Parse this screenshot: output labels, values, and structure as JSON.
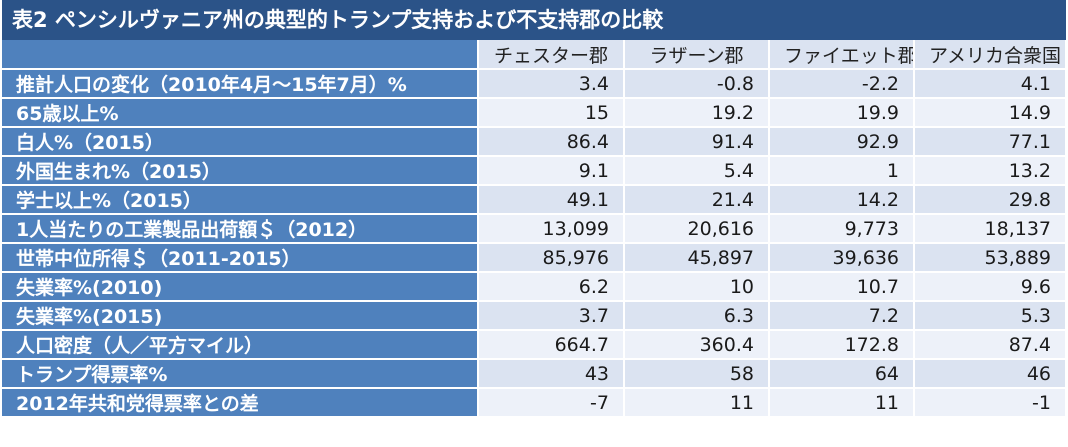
{
  "title": "表2  ペンシルヴァニア州の典型的トランプ支持および不支持郡の比較",
  "colors": {
    "title_bg": "#2b5388",
    "row_header_bg": "#4f81bd",
    "cell_dark": "#dbe3f1",
    "cell_light": "#edf1f9"
  },
  "chart_data": {
    "type": "table",
    "title": "表2  ペンシルヴァニア州の典型的トランプ支持および不支持郡の比較",
    "columns": [
      "チェスター郡",
      "ラザーン郡",
      "ファイエット郡",
      "アメリカ合衆国"
    ],
    "rows": [
      {
        "label": "推計人口の変化（2010年4月～15年7月）%",
        "values": [
          "3.4",
          "-0.8",
          "-2.2",
          "4.1"
        ]
      },
      {
        "label": "65歳以上%",
        "values": [
          "15",
          "19.2",
          "19.9",
          "14.9"
        ]
      },
      {
        "label": "白人%（2015）",
        "values": [
          "86.4",
          "91.4",
          "92.9",
          "77.1"
        ]
      },
      {
        "label": "外国生まれ%（2015）",
        "values": [
          "9.1",
          "5.4",
          "1",
          "13.2"
        ]
      },
      {
        "label": "学士以上%（2015）",
        "values": [
          "49.1",
          "21.4",
          "14.2",
          "29.8"
        ]
      },
      {
        "label": "1人当たりの工業製品出荷額＄（2012）",
        "values": [
          "13,099",
          "20,616",
          "9,773",
          "18,137"
        ]
      },
      {
        "label": "世帯中位所得＄（2011-2015）",
        "values": [
          "85,976",
          "45,897",
          "39,636",
          "53,889"
        ]
      },
      {
        "label": "失業率%(2010)",
        "values": [
          "6.2",
          "10",
          "10.7",
          "9.6"
        ]
      },
      {
        "label": "失業率%(2015)",
        "values": [
          "3.7",
          "6.3",
          "7.2",
          "5.3"
        ]
      },
      {
        "label": "人口密度（人／平方マイル）",
        "values": [
          "664.7",
          "360.4",
          "172.8",
          "87.4"
        ]
      },
      {
        "label": "トランプ得票率%",
        "values": [
          "43",
          "58",
          "64",
          "46"
        ]
      },
      {
        "label": "2012年共和党得票率との差",
        "values": [
          "-7",
          "11",
          "11",
          "-1"
        ]
      }
    ]
  }
}
